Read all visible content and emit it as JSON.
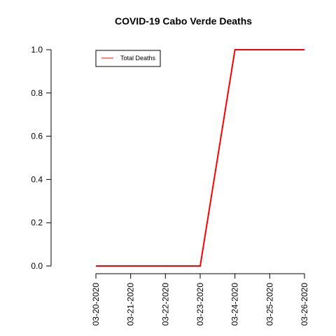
{
  "chart_data": {
    "type": "line",
    "title": "COVID-19 Cabo Verde Deaths",
    "xlabel": "",
    "ylabel": "",
    "categories": [
      "03-20-2020",
      "03-21-2020",
      "03-22-2020",
      "03-23-2020",
      "03-24-2020",
      "03-25-2020",
      "03-26-2020"
    ],
    "series": [
      {
        "name": "Total Deaths",
        "values": [
          0,
          0,
          0,
          0,
          1,
          1,
          1
        ],
        "color": "#ff0000"
      }
    ],
    "ylim": [
      0,
      1
    ],
    "y_ticks": [
      0.0,
      0.2,
      0.4,
      0.6,
      0.8,
      1.0
    ],
    "y_tick_labels": [
      "0.0",
      "0.2",
      "0.4",
      "0.6",
      "0.8",
      "1.0"
    ],
    "grid": false,
    "legend_position": "top-left"
  }
}
